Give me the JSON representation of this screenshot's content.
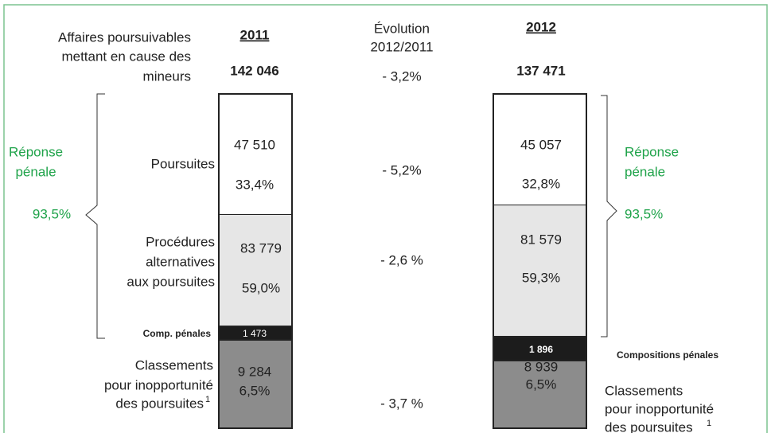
{
  "header": {
    "label": [
      "Affaires poursuivables",
      "mettant en cause des",
      "mineurs"
    ],
    "evolution": [
      "Évolution",
      "2012/2011"
    ]
  },
  "years": [
    {
      "year": "2011",
      "total": "142 046",
      "poursuites": [
        "47 510",
        "33,4%"
      ],
      "alternatives": [
        "83 779",
        "59,0%"
      ],
      "compositions": "1 473",
      "classements": [
        "9 284",
        "6,5%"
      ]
    },
    {
      "year": "2012",
      "total": "137 471",
      "poursuites": [
        "45 057",
        "32,8%"
      ],
      "alternatives": [
        "81 579",
        "59,3%"
      ],
      "compositions": "1 896",
      "classements": [
        "8 939",
        "6,5%"
      ]
    }
  ],
  "evolution": {
    "total": "- 3,2%",
    "poursuites": "- 5,2%",
    "alternatives": "- 2,6 %",
    "classements": "- 3,7  %"
  },
  "rows": {
    "poursuites": "Poursuites",
    "alternatives": [
      "Procédures",
      "alternatives",
      "aux poursuites"
    ],
    "compositions_short": "Comp. pénales",
    "compositions_long": "Compositions pénales",
    "classements": [
      "Classements",
      "pour inopportunité",
      "des poursuites"
    ],
    "footnote_marker": "1"
  },
  "penal_response": {
    "label": [
      "Réponse",
      "pénale"
    ],
    "share_2011": "93,5%",
    "share_2012": "93,5%"
  }
}
